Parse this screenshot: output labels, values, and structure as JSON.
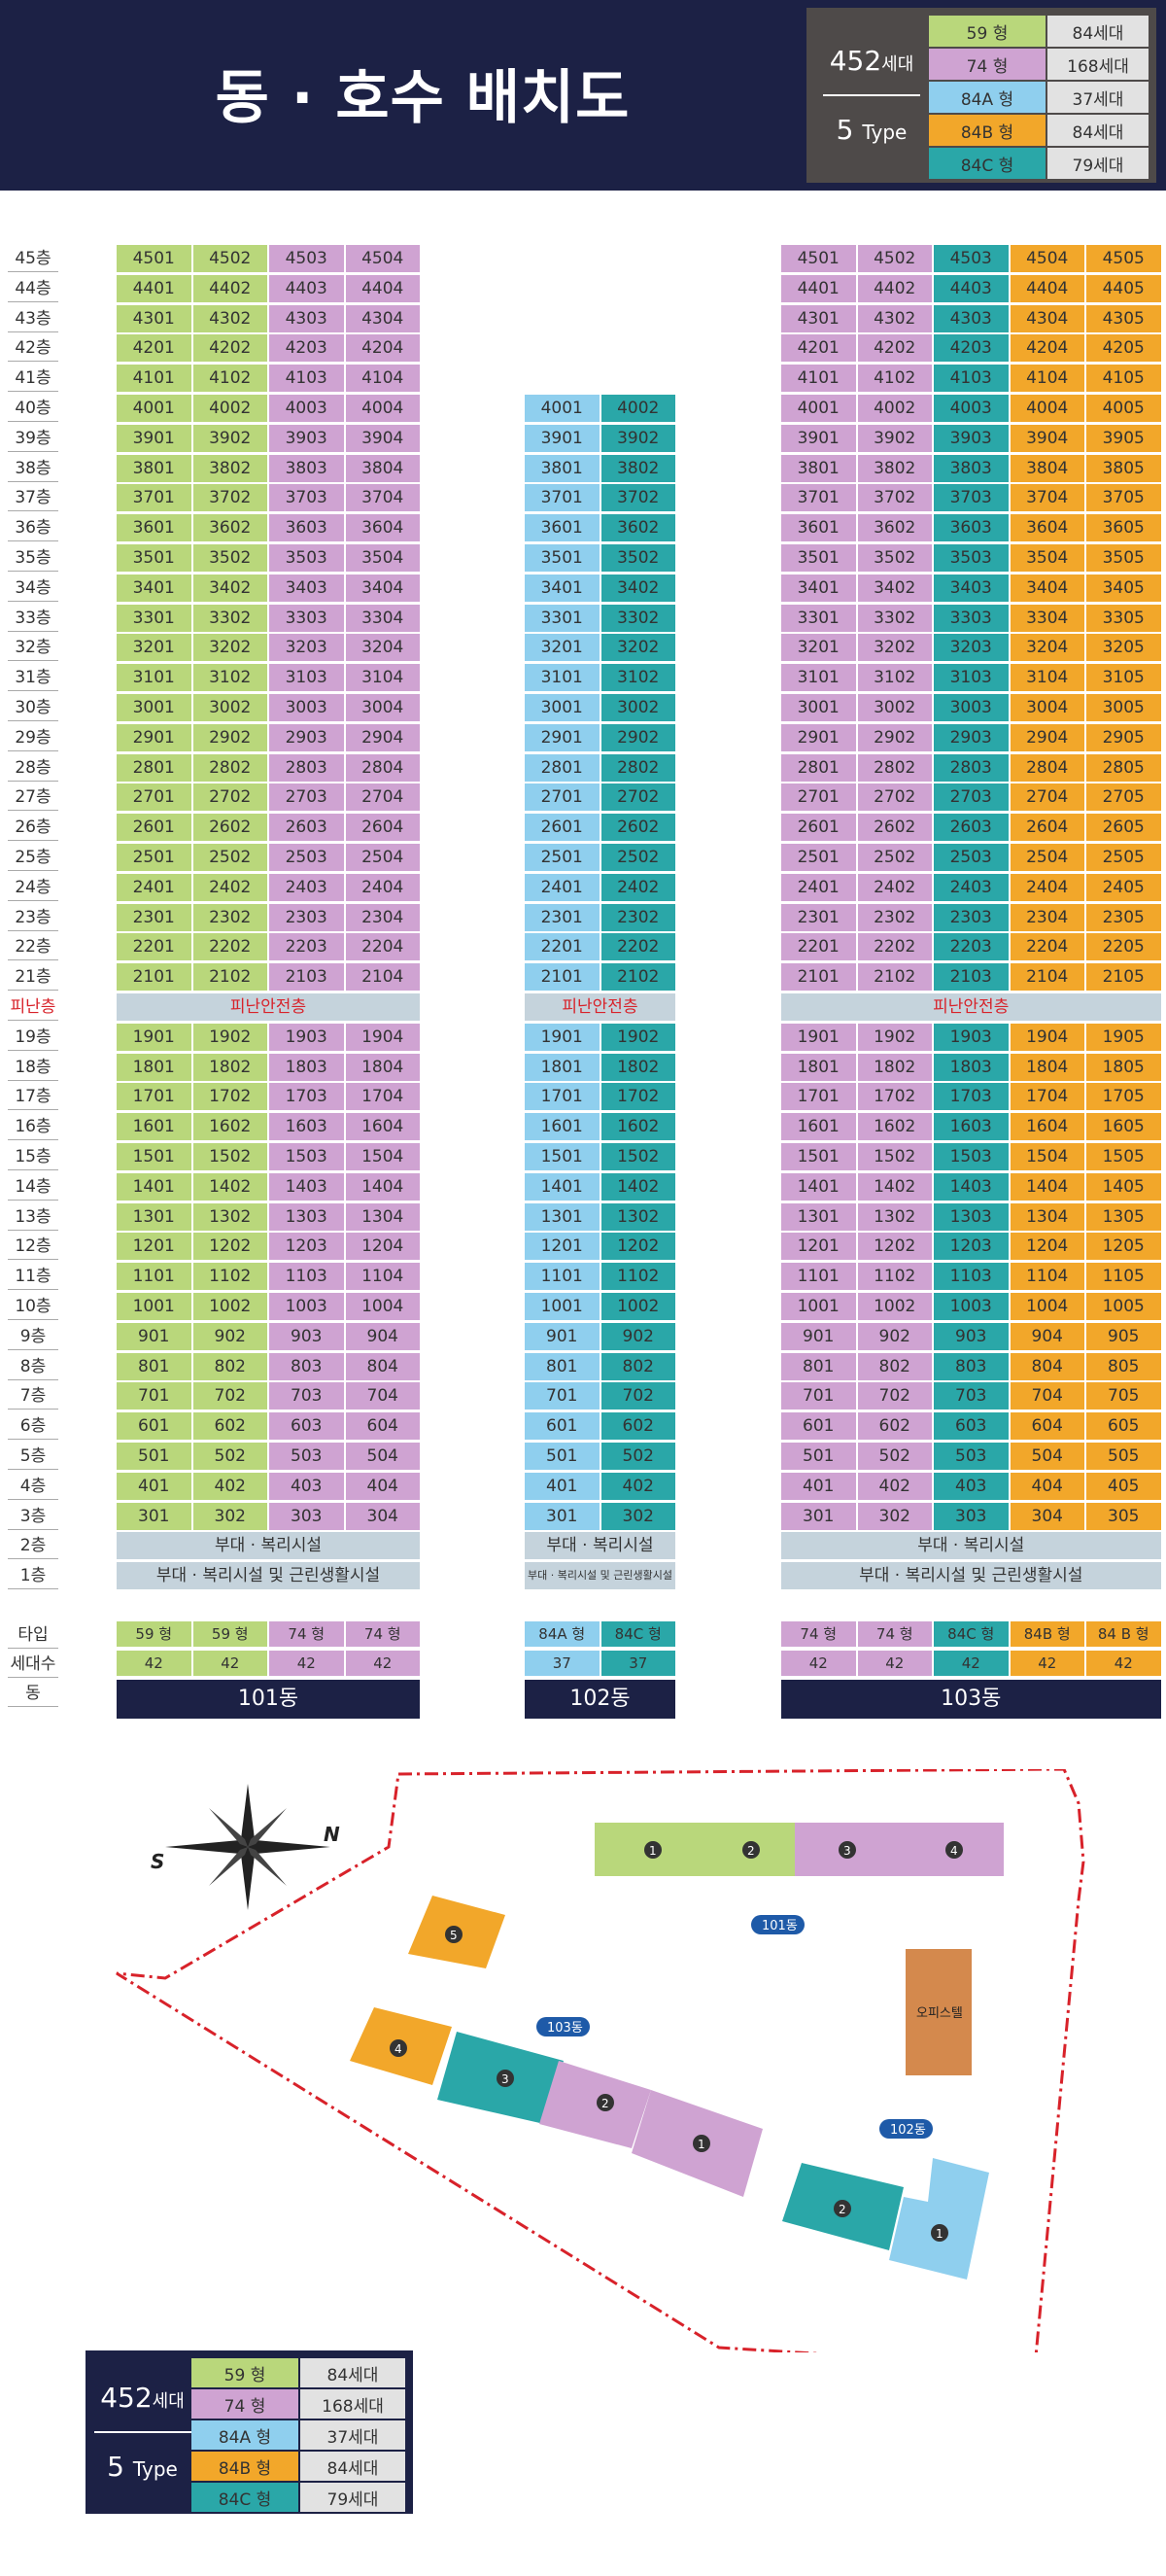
{
  "title": "동 · 호수 배치도",
  "legend": {
    "total": "452",
    "total_unit": "세대",
    "types": "5",
    "types_unit": "Type",
    "items": [
      {
        "type": "59 형",
        "count": "84세대",
        "color": "#b9d77b"
      },
      {
        "type": "74 형",
        "count": "168세대",
        "color": "#cfa3d2"
      },
      {
        "type": "84A 형",
        "count": "37세대",
        "color": "#8fcfee"
      },
      {
        "type": "84B 형",
        "count": "84세대",
        "color": "#f2a72a"
      },
      {
        "type": "84C 형",
        "count": "79세대",
        "color": "#2aa7a8"
      }
    ]
  },
  "row_labels": {
    "type": "타입",
    "households": "세대수",
    "building": "동"
  },
  "refuge_floor_label": "피난층",
  "refuge_band": "피난안전층",
  "floor2_band": "부대 · 복리시설",
  "floor1_band": "부대 · 복리시설 및 근린생활시설",
  "buildings": [
    {
      "name": "101동",
      "max_floor": 45,
      "columns": [
        {
          "line": "01",
          "type": "59 형",
          "households": "42",
          "color": "#b9d77b"
        },
        {
          "line": "02",
          "type": "59 형",
          "households": "42",
          "color": "#b9d77b"
        },
        {
          "line": "03",
          "type": "74 형",
          "households": "42",
          "color": "#cfa3d2"
        },
        {
          "line": "04",
          "type": "74 형",
          "households": "42",
          "color": "#cfa3d2"
        }
      ]
    },
    {
      "name": "102동",
      "max_floor": 40,
      "columns": [
        {
          "line": "01",
          "type": "84A 형",
          "households": "37",
          "color": "#8fcfee"
        },
        {
          "line": "02",
          "type": "84C 형",
          "households": "37",
          "color": "#2aa7a8"
        }
      ]
    },
    {
      "name": "103동",
      "max_floor": 45,
      "columns": [
        {
          "line": "01",
          "type": "74 형",
          "households": "42",
          "color": "#cfa3d2"
        },
        {
          "line": "02",
          "type": "74 형",
          "households": "42",
          "color": "#cfa3d2"
        },
        {
          "line": "03",
          "type": "84C 형",
          "households": "42",
          "color": "#2aa7a8"
        },
        {
          "line": "04",
          "type": "84B 형",
          "households": "42",
          "color": "#f2a72a"
        },
        {
          "line": "05",
          "type": "84 B 형",
          "households": "42",
          "color": "#f2a72a"
        }
      ]
    }
  ],
  "site": {
    "b101": "101동",
    "b102": "102동",
    "b103": "103동",
    "office": "오피스텔",
    "compass_n": "N",
    "compass_s": "S"
  }
}
